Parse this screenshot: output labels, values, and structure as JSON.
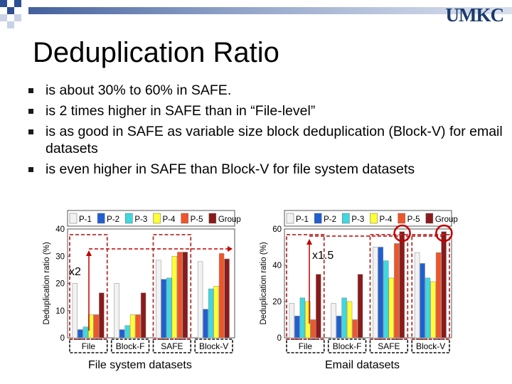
{
  "colors": {
    "checker_blue": "#2e4f92",
    "checker_light": "#c9d2e6",
    "logo": "#1a3a6c",
    "arrow_red": "#c00000",
    "bracket": "#b03030",
    "highlight_circle": "#c00000"
  },
  "header": {
    "logo_text": "UMKC"
  },
  "slide": {
    "title": "Deduplication Ratio",
    "bullets": [
      "is about 30% to 60% in SAFE.",
      "is 2 times higher in SAFE than in “File-level”",
      "is as good in SAFE as variable size block deduplication (Block-V)  for email datasets",
      "is even higher in SAFE than Block-V for file system datasets"
    ]
  },
  "chart_data": [
    {
      "type": "bar",
      "caption": "File system datasets",
      "ylabel": "Deduplication ratio (%)",
      "ylim": [
        0,
        40
      ],
      "yticks": [
        "0",
        "10",
        "20",
        "30",
        "40"
      ],
      "categories": [
        "File",
        "Block-F",
        "SAFE",
        "Block-V"
      ],
      "series": [
        {
          "name": "P-1",
          "color": "#f2f2f2",
          "values": [
            20,
            20,
            28.5,
            28
          ]
        },
        {
          "name": "P-2",
          "color": "#1f5fd1",
          "values": [
            3,
            3,
            21.5,
            10.5
          ]
        },
        {
          "name": "P-3",
          "color": "#3fd8df",
          "values": [
            4,
            4.5,
            22,
            18
          ]
        },
        {
          "name": "P-4",
          "color": "#ffff33",
          "values": [
            8.5,
            8.5,
            30,
            19
          ]
        },
        {
          "name": "P-5",
          "color": "#f0552a",
          "values": [
            8.5,
            8.5,
            31.5,
            31
          ]
        },
        {
          "name": "Group",
          "color": "#8b1a1a",
          "values": [
            16.5,
            16.5,
            31.5,
            29
          ]
        }
      ],
      "annotation": "x2",
      "highlight": [
        "File",
        "SAFE"
      ]
    },
    {
      "type": "bar",
      "caption": "Email datasets",
      "ylabel": "Deduplication ratio (%)",
      "ylim": [
        0,
        60
      ],
      "yticks": [
        "0",
        "20",
        "40",
        "60"
      ],
      "categories": [
        "File",
        "Block-F",
        "SAFE",
        "Block-V"
      ],
      "series": [
        {
          "name": "P-1",
          "color": "#f2f2f2",
          "values": [
            19,
            19,
            50,
            47
          ]
        },
        {
          "name": "P-2",
          "color": "#1f5fd1",
          "values": [
            12,
            12,
            50,
            41
          ]
        },
        {
          "name": "P-3",
          "color": "#3fd8df",
          "values": [
            22,
            22,
            42.5,
            33
          ]
        },
        {
          "name": "P-4",
          "color": "#ffff33",
          "values": [
            20,
            20,
            33,
            31
          ]
        },
        {
          "name": "P-5",
          "color": "#f0552a",
          "values": [
            10,
            10,
            52,
            47
          ]
        },
        {
          "name": "Group",
          "color": "#8b1a1a",
          "values": [
            35,
            35,
            58.5,
            58.5
          ]
        }
      ],
      "annotation": "x1.5",
      "highlight": [
        "File",
        "SAFE",
        "Block-V"
      ]
    }
  ]
}
